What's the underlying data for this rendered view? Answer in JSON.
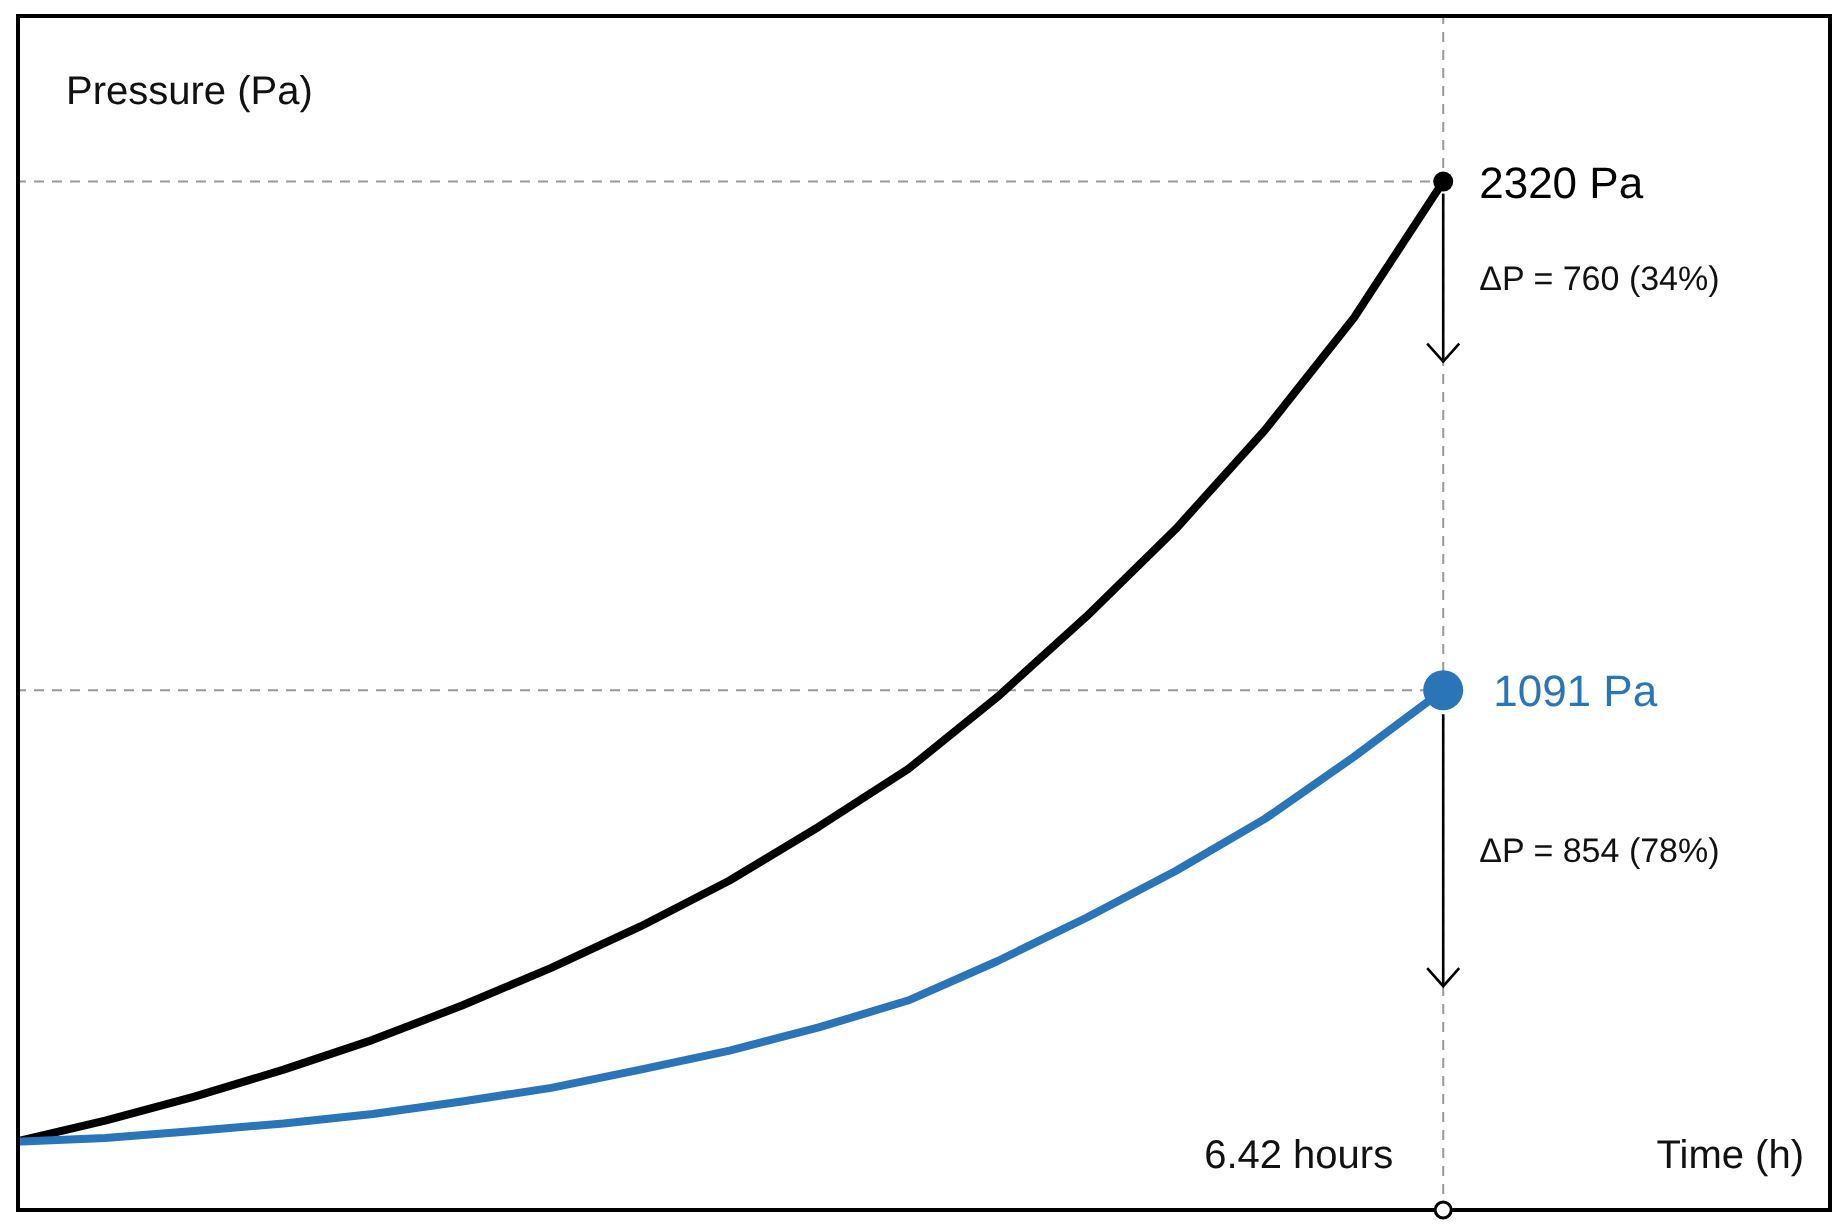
{
  "chart_data": {
    "type": "line",
    "xlabel": "Time (h)",
    "ylabel": "Pressure (Pa)",
    "ylim": [
      -170,
      2725
    ],
    "tick_labels": false,
    "line_style": "solid",
    "categories": [
      null,
      null,
      null,
      null,
      null,
      null,
      null,
      null,
      null,
      null,
      null,
      null,
      null,
      null,
      null,
      null,
      null,
      null,
      null,
      null,
      null
    ],
    "series": [
      {
        "color": "#000000",
        "values": [
          0,
          51,
          109,
          174,
          246,
          329,
          420,
          520,
          631,
          761,
          900,
          1074,
          1269,
          1480,
          1719,
          1991,
          2320,
          null,
          null,
          null,
          null
        ],
        "value_labels": [
          null,
          null,
          null,
          null,
          null,
          null,
          null,
          null,
          null,
          null,
          null,
          null,
          null,
          null,
          null,
          null,
          "2320 Pa",
          null,
          null,
          null,
          null
        ]
      },
      {
        "color": "#2a74b8",
        "values": [
          0,
          9,
          26,
          44,
          67,
          97,
          130,
          174,
          220,
          276,
          341,
          436,
          541,
          654,
          780,
          930,
          1091,
          null,
          null,
          null,
          null
        ],
        "value_labels": [
          null,
          null,
          null,
          null,
          null,
          null,
          null,
          null,
          null,
          null,
          null,
          null,
          null,
          null,
          null,
          null,
          "1091 Pa",
          null,
          null,
          null,
          null
        ]
      }
    ],
    "ref_lines": [
      {
        "axis": "y",
        "value": 2320,
        "color": "#999999",
        "line_style": "dashed"
      },
      {
        "axis": "y",
        "value": 1091,
        "color": "#999999",
        "line_style": "dashed"
      },
      {
        "axis": "x",
        "label": "6.42 hours",
        "color": "#999999",
        "line_style": "dashed"
      }
    ],
    "annotations": [
      "ΔP = 760 (34%)",
      "ΔP = 854 (78%)"
    ]
  }
}
